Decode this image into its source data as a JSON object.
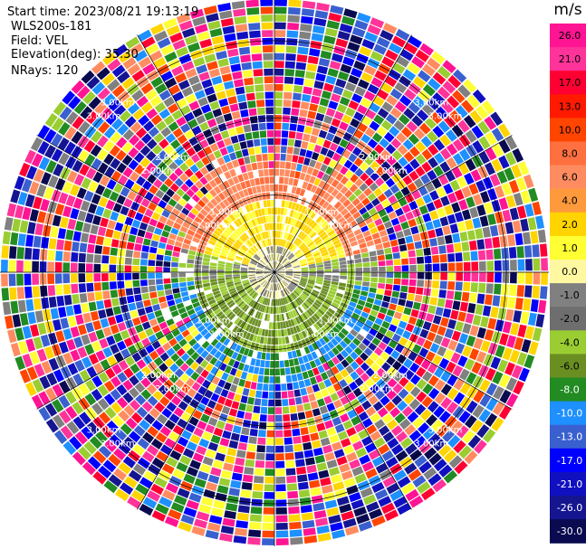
{
  "info": {
    "start_time": "Start time: 2023/08/21 19:13:19",
    "instrument": "WLS200s-181",
    "field": "Field: VEL",
    "elevation": "Elevation(deg): 35.30",
    "nrays": "NRays: 120"
  },
  "chart_data": {
    "type": "heatmap",
    "projection": "polar-ppi",
    "field": "VEL",
    "n_rays": 120,
    "range_rings_km": [
      1.0,
      2.0,
      3.0
    ],
    "ring_labels": [
      "1.00km",
      "2.00km",
      "3.00km"
    ],
    "max_range_km": 3.55,
    "grid": true,
    "colorbar": {
      "unit": "m/s",
      "placement": "right",
      "tick_labels": [
        "26.0",
        "21.0",
        "17.0",
        "13.0",
        "10.0",
        "8.0",
        "6.0",
        "4.0",
        "2.0",
        "1.0",
        "0.0",
        "-1.0",
        "-2.0",
        "-4.0",
        "-6.0",
        "-8.0",
        "-10.0",
        "-13.0",
        "-17.0",
        "-21.0",
        "-26.0",
        "-30.0"
      ],
      "colors": [
        "#ff1493",
        "#ff3399",
        "#ff0033",
        "#ff1a00",
        "#ff4500",
        "#ff7040",
        "#ff8c60",
        "#ff9a3c",
        "#ffd400",
        "#ffff33",
        "#fff8a0",
        "#808080",
        "#6e6e6e",
        "#9acd32",
        "#6b8e23",
        "#228b22",
        "#1e90ff",
        "#3a60d0",
        "#0000ff",
        "#1010c0",
        "#151590",
        "#0a0a50"
      ]
    }
  }
}
